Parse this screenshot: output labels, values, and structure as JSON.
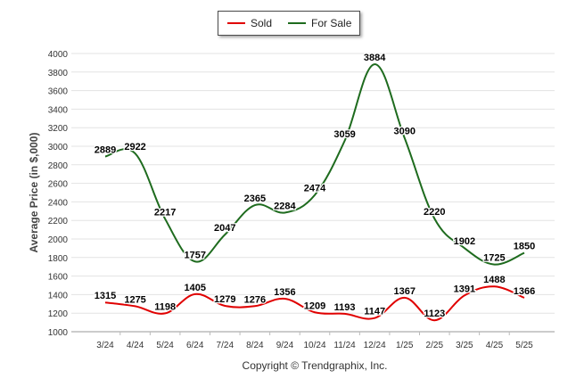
{
  "legend": {
    "sold_label": "Sold",
    "forsale_label": "For Sale"
  },
  "copyright": "Copyright © Trendgraphix, Inc.",
  "colors": {
    "sold": "#e00000",
    "for_sale": "#1e6b1e",
    "grid": "#e3e3e3"
  },
  "chart_data": {
    "type": "line",
    "categories": [
      "3/24",
      "4/24",
      "5/24",
      "6/24",
      "7/24",
      "8/24",
      "9/24",
      "10/24",
      "11/24",
      "12/24",
      "1/25",
      "2/25",
      "3/25",
      "4/25",
      "5/25"
    ],
    "series": [
      {
        "name": "Sold",
        "values": [
          1315,
          1275,
          1198,
          1405,
          1279,
          1276,
          1356,
          1209,
          1193,
          1147,
          1367,
          1123,
          1391,
          1488,
          1366
        ]
      },
      {
        "name": "For Sale",
        "values": [
          2889,
          2922,
          2217,
          1757,
          2047,
          2365,
          2284,
          2474,
          3059,
          3884,
          3090,
          2220,
          1902,
          1725,
          1850
        ]
      }
    ],
    "ylabel": "Average Price (in $,000)",
    "xlabel": "",
    "ylim": [
      1000,
      4000
    ],
    "yticks": [
      1000,
      1200,
      1400,
      1600,
      1800,
      2000,
      2200,
      2400,
      2600,
      2800,
      3000,
      3200,
      3400,
      3600,
      3800,
      4000
    ],
    "grid": true,
    "legend_position": "top-center"
  }
}
